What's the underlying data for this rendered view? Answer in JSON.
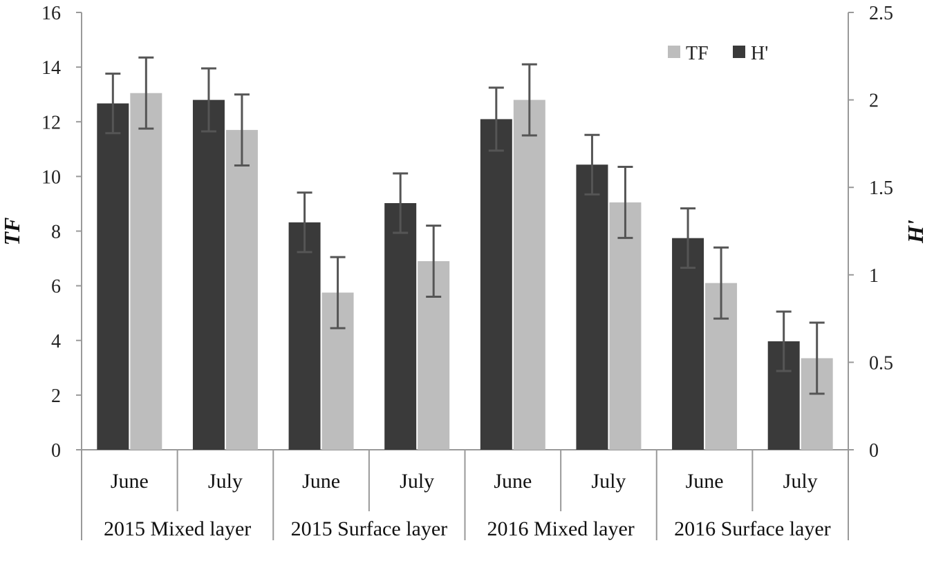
{
  "chart_data": {
    "type": "bar",
    "title": "",
    "months": [
      "June",
      "July",
      "June",
      "July",
      "June",
      "July",
      "June",
      "July"
    ],
    "groups": [
      "2015 Mixed layer",
      "2015 Surface layer",
      "2016 Mixed layer",
      "2016 Surface layer"
    ],
    "ylabel_left": "TF",
    "ylabel_right": "H'",
    "ylim_left": [
      0,
      16
    ],
    "ylim_right": [
      0,
      2.5
    ],
    "yticks_left": [
      "0",
      "2",
      "4",
      "6",
      "8",
      "10",
      "12",
      "14",
      "16"
    ],
    "yticks_right": [
      "0",
      "0.5",
      "1",
      "1.5",
      "2",
      "2.5"
    ],
    "grid": false,
    "legend_position": "top-right",
    "series": [
      {
        "name": "H'",
        "axis": "right",
        "color": "#3a3a3a",
        "values": [
          1.98,
          2.0,
          1.3,
          1.41,
          1.89,
          1.63,
          1.21,
          0.62
        ],
        "errors": [
          0.17,
          0.18,
          0.17,
          0.17,
          0.18,
          0.17,
          0.17,
          0.17
        ]
      },
      {
        "name": "TF",
        "axis": "left",
        "color": "#bdbdbd",
        "values": [
          13.05,
          11.7,
          5.75,
          6.9,
          12.8,
          9.05,
          6.1,
          3.35
        ],
        "errors": [
          1.3,
          1.3,
          1.3,
          1.3,
          1.3,
          1.3,
          1.3,
          1.3
        ]
      }
    ]
  }
}
